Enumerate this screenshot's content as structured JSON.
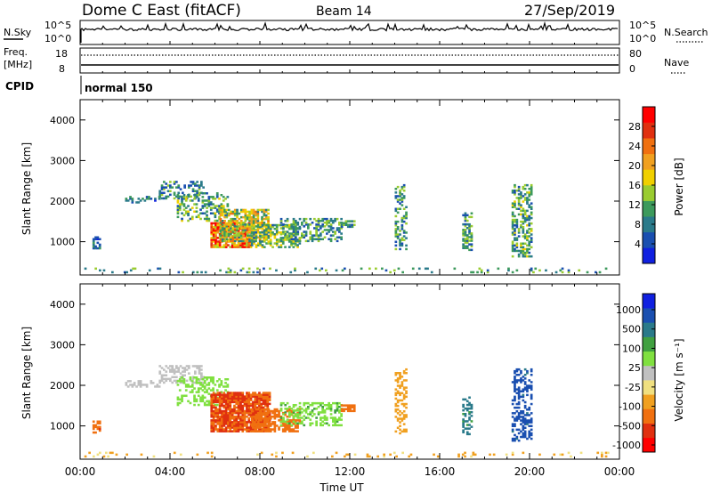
{
  "header": {
    "station": "Dome C East (fitACF)",
    "beam": "Beam 14",
    "date": "27/Sep/2019"
  },
  "noise_panel": {
    "left_label": "N.Sky",
    "right_label": "N.Search",
    "left_ticks": [
      "10^5",
      "10^0"
    ],
    "right_ticks": [
      "10^5",
      "10^0"
    ]
  },
  "freq_panel": {
    "left_label_line1": "Freq.",
    "left_label_line2": "[MHz]",
    "right_label": "Nave",
    "left_ticks": [
      "18",
      "8"
    ],
    "right_ticks": [
      "80",
      "0"
    ]
  },
  "cpid": {
    "label": "CPID",
    "program": "normal 150"
  },
  "colors": {
    "power_scale": [
      "#1020e0",
      "#1a4fb0",
      "#2a7a8a",
      "#3d9a5c",
      "#9acc30",
      "#f0d000",
      "#f0a020",
      "#f07010",
      "#e03010",
      "#ff0000"
    ],
    "velocity_scale": [
      "#ff0000",
      "#e03010",
      "#f07010",
      "#f0a020",
      "#f0e080",
      "#c0c0c0",
      "#80e040",
      "#40a040",
      "#2a7a8a",
      "#1a4fb0",
      "#1020e0"
    ]
  },
  "chart_data": [
    {
      "type": "heatmap",
      "name": "power",
      "ylabel": "Slant Range [km]",
      "ylim": [
        180,
        4500
      ],
      "yticks": [
        1000,
        2000,
        3000,
        4000
      ],
      "xlim": [
        0,
        24
      ],
      "colorbar_label": "Power [dB]",
      "colorbar_ticks": [
        4,
        8,
        12,
        16,
        20,
        24,
        28
      ],
      "colorbar_range": [
        0,
        32
      ],
      "regions": [
        {
          "t0": 0.55,
          "t1": 0.9,
          "r0": 820,
          "r1": 1120,
          "v": 6,
          "dens": 0.75
        },
        {
          "t0": 2.0,
          "t1": 3.5,
          "r0": 1950,
          "r1": 2100,
          "v": 8,
          "dens": 0.35
        },
        {
          "t0": 3.5,
          "t1": 5.5,
          "r0": 2050,
          "r1": 2500,
          "v": 9,
          "dens": 0.4
        },
        {
          "t0": 4.3,
          "t1": 6.6,
          "r0": 1500,
          "r1": 2200,
          "v": 11,
          "dens": 0.35
        },
        {
          "t0": 5.8,
          "t1": 7.6,
          "r0": 850,
          "r1": 1450,
          "v": 24,
          "dens": 0.85
        },
        {
          "t0": 6.2,
          "t1": 8.4,
          "r0": 1000,
          "r1": 1800,
          "v": 16,
          "dens": 0.7
        },
        {
          "t0": 7.6,
          "t1": 9.8,
          "r0": 850,
          "r1": 1400,
          "v": 12,
          "dens": 0.6
        },
        {
          "t0": 8.9,
          "t1": 11.6,
          "r0": 1000,
          "r1": 1550,
          "v": 10,
          "dens": 0.45
        },
        {
          "t0": 11.6,
          "t1": 12.2,
          "r0": 1350,
          "r1": 1500,
          "v": 10,
          "dens": 0.7
        },
        {
          "t0": 14.0,
          "t1": 14.5,
          "r0": 800,
          "r1": 2400,
          "v": 10,
          "dens": 0.4
        },
        {
          "t0": 17.0,
          "t1": 17.4,
          "r0": 780,
          "r1": 1700,
          "v": 10,
          "dens": 0.5
        },
        {
          "t0": 19.2,
          "t1": 20.1,
          "r0": 620,
          "r1": 2400,
          "v": 11,
          "dens": 0.45
        },
        {
          "t0": 0.0,
          "t1": 23.5,
          "r0": 230,
          "r1": 330,
          "v": 10,
          "dens": 0.1
        }
      ]
    },
    {
      "type": "heatmap",
      "name": "velocity",
      "ylabel": "Slant Range [km]",
      "ylim": [
        180,
        4500
      ],
      "yticks": [
        1000,
        2000,
        3000,
        4000
      ],
      "xlabel": "Time UT",
      "xlim": [
        0,
        24
      ],
      "xticks": [
        "00:00",
        "04:00",
        "08:00",
        "12:00",
        "16:00",
        "20:00",
        "00:00"
      ],
      "colorbar_label": "Velocity [m s⁻¹]",
      "colorbar_ticks": [
        "1000",
        "500",
        "100",
        "25",
        "-25",
        "-100",
        "-500",
        "-1000"
      ],
      "regions": [
        {
          "t0": 0.55,
          "t1": 0.9,
          "r0": 820,
          "r1": 1120,
          "v": -200,
          "dens": 0.75
        },
        {
          "t0": 2.0,
          "t1": 3.5,
          "r0": 1950,
          "r1": 2100,
          "v": 0,
          "dens": 0.35
        },
        {
          "t0": 3.5,
          "t1": 5.5,
          "r0": 2050,
          "r1": 2500,
          "v": 10,
          "dens": 0.4
        },
        {
          "t0": 4.3,
          "t1": 6.6,
          "r0": 1500,
          "r1": 2200,
          "v": 60,
          "dens": 0.35
        },
        {
          "t0": 5.8,
          "t1": 8.4,
          "r0": 850,
          "r1": 1800,
          "v": -250,
          "dens": 0.85
        },
        {
          "t0": 7.6,
          "t1": 9.8,
          "r0": 850,
          "r1": 1400,
          "v": -150,
          "dens": 0.6
        },
        {
          "t0": 8.9,
          "t1": 11.6,
          "r0": 1000,
          "r1": 1550,
          "v": 80,
          "dens": 0.45
        },
        {
          "t0": 11.6,
          "t1": 12.2,
          "r0": 1350,
          "r1": 1500,
          "v": -150,
          "dens": 0.7
        },
        {
          "t0": 14.0,
          "t1": 14.5,
          "r0": 800,
          "r1": 2400,
          "v": -60,
          "dens": 0.4
        },
        {
          "t0": 17.0,
          "t1": 17.4,
          "r0": 780,
          "r1": 1700,
          "v": 300,
          "dens": 0.5
        },
        {
          "t0": 19.2,
          "t1": 20.1,
          "r0": 620,
          "r1": 2400,
          "v": 700,
          "dens": 0.45
        },
        {
          "t0": 0.0,
          "t1": 23.5,
          "r0": 230,
          "r1": 330,
          "v": -30,
          "dens": 0.1
        }
      ]
    }
  ]
}
